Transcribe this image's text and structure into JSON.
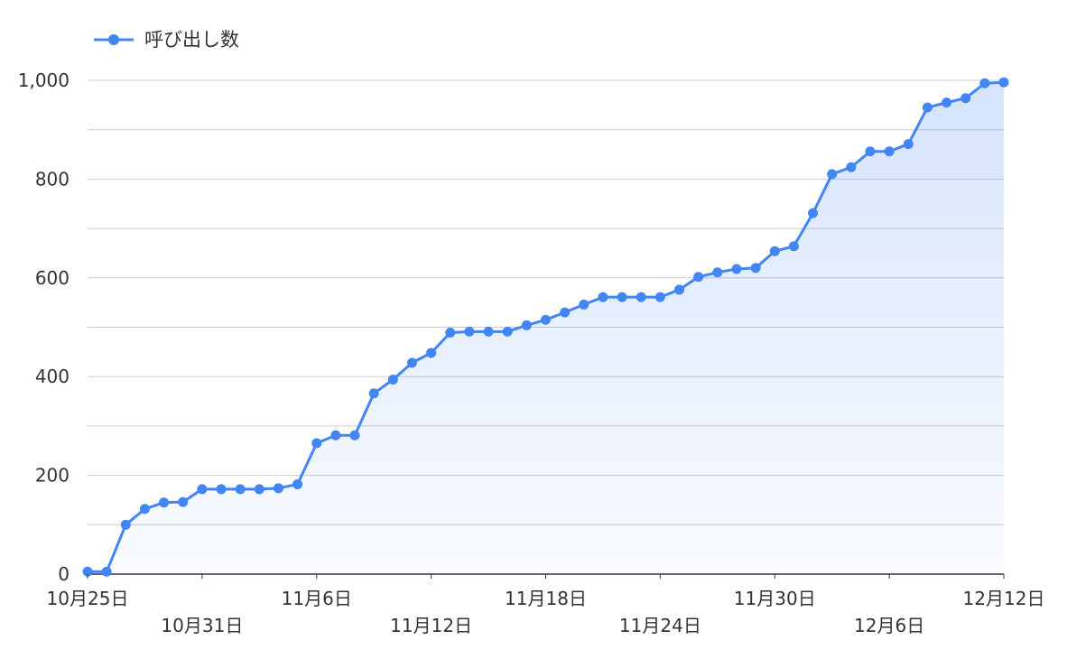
{
  "chart_data": {
    "type": "area",
    "title": "",
    "xlabel": "",
    "ylabel": "",
    "legend": {
      "position": "top-left",
      "entries": [
        "呼び出し数"
      ]
    },
    "grid": true,
    "ylim": [
      0,
      1000
    ],
    "y_ticks": [
      {
        "value": 0,
        "label": "0"
      },
      {
        "value": 200,
        "label": "200"
      },
      {
        "value": 400,
        "label": "400"
      },
      {
        "value": 600,
        "label": "600"
      },
      {
        "value": 800,
        "label": "800"
      },
      {
        "value": 1000,
        "label": "1,000"
      }
    ],
    "x_ticks": [
      {
        "index": 0,
        "label": "10月25日",
        "row": 0
      },
      {
        "index": 6,
        "label": "10月31日",
        "row": 1
      },
      {
        "index": 12,
        "label": "11月6日",
        "row": 0
      },
      {
        "index": 18,
        "label": "11月12日",
        "row": 1
      },
      {
        "index": 24,
        "label": "11月18日",
        "row": 0
      },
      {
        "index": 30,
        "label": "11月24日",
        "row": 1
      },
      {
        "index": 36,
        "label": "11月30日",
        "row": 0
      },
      {
        "index": 42,
        "label": "12月6日",
        "row": 1
      },
      {
        "index": 48,
        "label": "12月12日",
        "row": 0
      }
    ],
    "x": [
      "10月25日",
      "10月26日",
      "10月27日",
      "10月28日",
      "10月29日",
      "10月30日",
      "10月31日",
      "11月1日",
      "11月2日",
      "11月3日",
      "11月4日",
      "11月5日",
      "11月6日",
      "11月7日",
      "11月8日",
      "11月9日",
      "11月10日",
      "11月11日",
      "11月12日",
      "11月13日",
      "11月14日",
      "11月15日",
      "11月16日",
      "11月17日",
      "11月18日",
      "11月19日",
      "11月20日",
      "11月21日",
      "11月22日",
      "11月23日",
      "11月24日",
      "11月25日",
      "11月26日",
      "11月27日",
      "11月28日",
      "11月29日",
      "11月30日",
      "12月1日",
      "12月2日",
      "12月3日",
      "12月4日",
      "12月5日",
      "12月6日",
      "12月7日",
      "12月8日",
      "12月9日",
      "12月10日",
      "12月11日",
      "12月12日"
    ],
    "series": [
      {
        "name": "呼び出し数",
        "color": "#4285f4",
        "values": [
          5,
          5,
          100,
          132,
          145,
          146,
          172,
          172,
          172,
          172,
          174,
          182,
          265,
          281,
          281,
          366,
          394,
          428,
          448,
          489,
          491,
          491,
          491,
          504,
          515,
          530,
          546,
          561,
          561,
          561,
          561,
          576,
          602,
          611,
          618,
          620,
          654,
          664,
          731,
          810,
          824,
          856,
          856,
          871,
          945,
          955,
          964,
          994,
          996
        ]
      }
    ]
  }
}
